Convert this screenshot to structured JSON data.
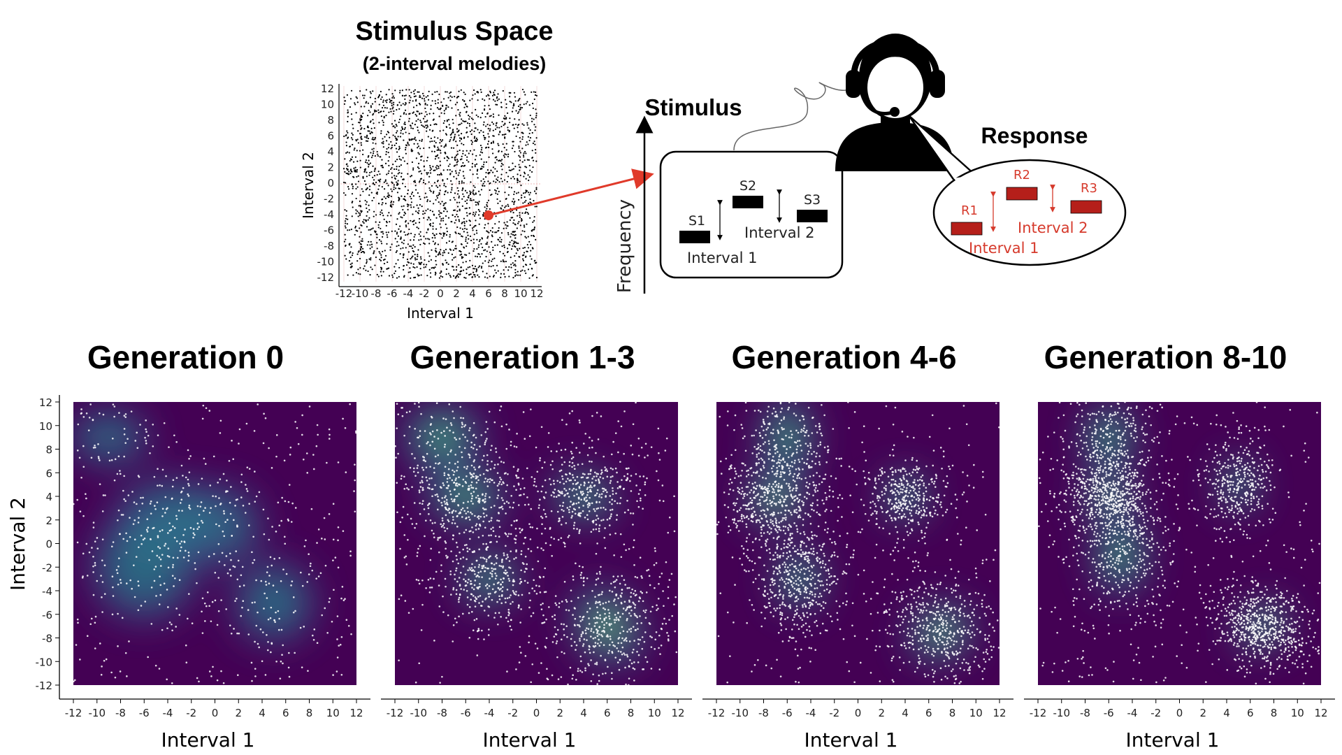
{
  "top": {
    "stimulus_space": {
      "title": "Stimulus Space",
      "subtitle": "(2-interval melodies)",
      "xlabel": "Interval 1",
      "ylabel": "Interval 2",
      "ticks": [
        "-12",
        "-10",
        "-8",
        "-6",
        "-4",
        "-2",
        "0",
        "2",
        "4",
        "6",
        "8",
        "10",
        "12"
      ],
      "highlight_point": {
        "x": 6,
        "y": -4
      },
      "point_color": "#000000",
      "highlight_color": "#e03a2a"
    },
    "stimulus_label": "Stimulus",
    "frequency_label": "Frequency",
    "stimulus_box": {
      "notes": [
        "S1",
        "S2",
        "S3"
      ],
      "interval1": "Interval 1",
      "interval2": "Interval 2"
    },
    "response_label": "Response",
    "response_bubble": {
      "notes": [
        "R1",
        "R2",
        "R3"
      ],
      "interval1": "Interval 1",
      "interval2": "Interval 2",
      "color": "#d63a2c"
    }
  },
  "chart_data": [
    {
      "type": "scatter",
      "title": "Generation 0",
      "xlabel": "Interval 1",
      "ylabel": "Interval 2",
      "xlim": [
        -12,
        12
      ],
      "ylim": [
        -12,
        12
      ],
      "xticks": [
        -12,
        -10,
        -8,
        -6,
        -4,
        -2,
        0,
        2,
        4,
        6,
        8,
        10,
        12
      ],
      "yticks": [
        -12,
        -10,
        -8,
        -6,
        -4,
        -2,
        0,
        2,
        4,
        6,
        8,
        10,
        12
      ],
      "density_peaks": [
        {
          "x": 0,
          "y": 1.5
        },
        {
          "x": -4,
          "y": 2
        },
        {
          "x": -6,
          "y": -2
        },
        {
          "x": 5,
          "y": -5
        }
      ],
      "points_approx": 700
    },
    {
      "type": "scatter",
      "title": "Generation 1-3",
      "xlabel": "Interval 1",
      "ylabel": "",
      "xlim": [
        -12,
        12
      ],
      "ylim": [
        -12,
        12
      ],
      "xticks": [
        -12,
        -10,
        -8,
        -6,
        -4,
        -2,
        0,
        2,
        4,
        6,
        8,
        10,
        12
      ],
      "density_peaks": [
        {
          "x": -6,
          "y": 4
        },
        {
          "x": 4,
          "y": 4
        },
        {
          "x": -4,
          "y": -3
        },
        {
          "x": 6,
          "y": -7
        }
      ],
      "points_approx": 1900
    },
    {
      "type": "scatter",
      "title": "Generation 4-6",
      "xlabel": "Interval 1",
      "ylabel": "",
      "xlim": [
        -12,
        12
      ],
      "ylim": [
        -12,
        12
      ],
      "xticks": [
        -12,
        -10,
        -8,
        -6,
        -4,
        -2,
        0,
        2,
        4,
        6,
        8,
        10,
        12
      ],
      "density_peaks": [
        {
          "x": -7,
          "y": 4
        },
        {
          "x": 4,
          "y": 4
        },
        {
          "x": -5,
          "y": -3
        },
        {
          "x": 7,
          "y": -7
        }
      ],
      "points_approx": 2300
    },
    {
      "type": "scatter",
      "title": "Generation 8-10",
      "xlabel": "Interval 1",
      "ylabel": "",
      "xlim": [
        -12,
        12
      ],
      "ylim": [
        -12,
        12
      ],
      "xticks": [
        -12,
        -10,
        -8,
        -6,
        -4,
        -2,
        0,
        2,
        4,
        6,
        8,
        10,
        12
      ],
      "density_peaks": [
        {
          "x": -6,
          "y": 4
        },
        {
          "x": 5,
          "y": 5
        },
        {
          "x": -5,
          "y": -1
        },
        {
          "x": 7,
          "y": -7
        }
      ],
      "points_approx": 2600
    }
  ],
  "colors": {
    "density_low": "#440154",
    "density_mid": "#21918c",
    "density_high": "#fde725",
    "points_on_density": "#ffffff"
  }
}
